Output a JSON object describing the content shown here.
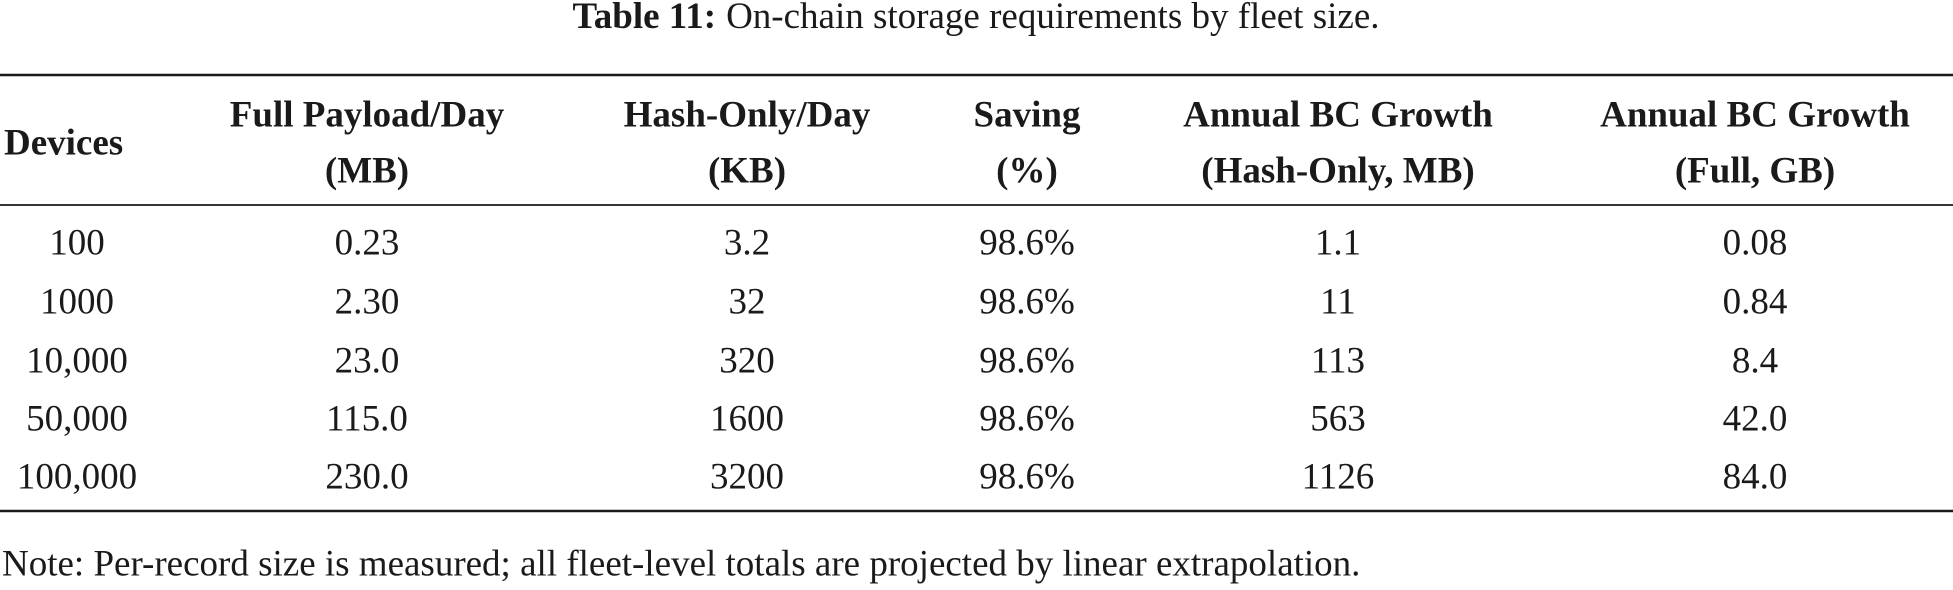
{
  "caption": {
    "label": "Table 11:",
    "text": "On-chain storage requirements by fleet size."
  },
  "table": {
    "header": [
      [
        "Devices"
      ],
      [
        "Full Payload/Day",
        "(MB)"
      ],
      [
        "Hash-Only/Day",
        "(KB)"
      ],
      [
        "Saving",
        "(%)"
      ],
      [
        "Annual BC Growth",
        "(Hash-Only, MB)"
      ],
      [
        "Annual BC Growth",
        "(Full, GB)"
      ]
    ],
    "rows": [
      [
        "100",
        "0.23",
        "3.2",
        "98.6%",
        "1.1",
        "0.08"
      ],
      [
        "1000",
        "2.30",
        "32",
        "98.6%",
        "11",
        "0.84"
      ],
      [
        "10,000",
        "23.0",
        "320",
        "98.6%",
        "113",
        "8.4"
      ],
      [
        "50,000",
        "115.0",
        "1600",
        "98.6%",
        "563",
        "42.0"
      ],
      [
        "100,000",
        "230.0",
        "3200",
        "98.6%",
        "1126",
        "84.0"
      ]
    ]
  },
  "note": "Note: Per-record size is measured; all fleet-level totals are projected by linear extrapolation."
}
